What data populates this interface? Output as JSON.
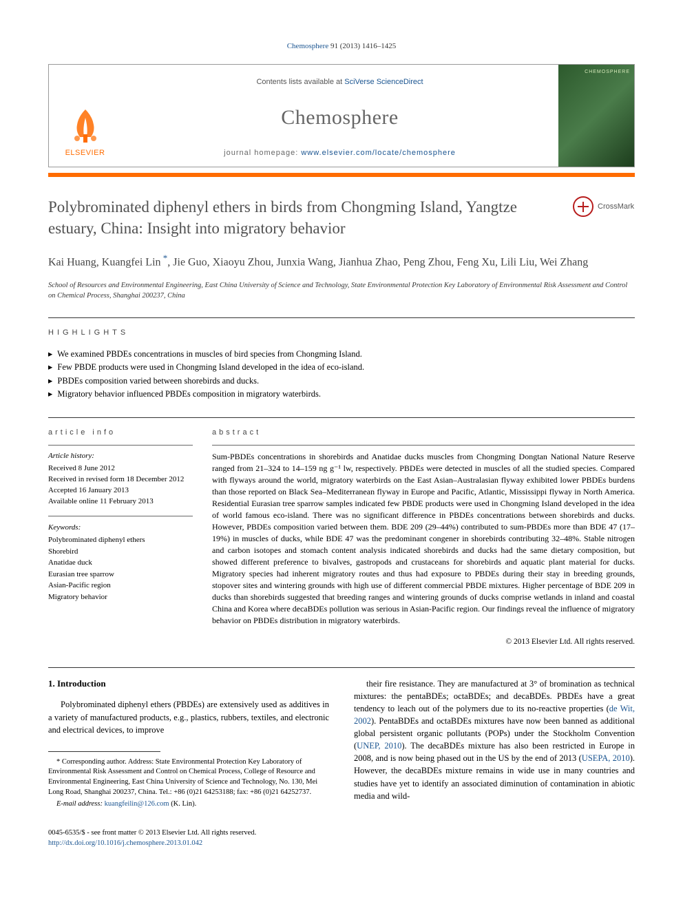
{
  "citation": {
    "journal_link": "Chemosphere",
    "ref": " 91 (2013) 1416–1425"
  },
  "header": {
    "contents_prefix": "Contents lists available at ",
    "contents_link": "SciVerse ScienceDirect",
    "journal_name": "Chemosphere",
    "homepage_prefix": "journal homepage: ",
    "homepage_link": "www.elsevier.com/locate/chemosphere",
    "publisher_text": "ELSEVIER",
    "cover_label": "CHEMOSPHERE"
  },
  "colors": {
    "accent_orange": "#ff6c00",
    "link_blue": "#1a5490",
    "title_gray": "#505050",
    "journal_gray": "#666666"
  },
  "crossmark": {
    "label": "CrossMark"
  },
  "title": "Polybrominated diphenyl ethers in birds from Chongming Island, Yangtze estuary, China: Insight into migratory behavior",
  "authors": [
    "Kai Huang",
    "Kuangfei Lin",
    "Jie Guo",
    "Xiaoyu Zhou",
    "Junxia Wang",
    "Jianhua Zhao",
    "Peng Zhou",
    "Feng Xu",
    "Lili Liu",
    "Wei Zhang"
  ],
  "corresponding_index": 1,
  "affiliation": "School of Resources and Environmental Engineering, East China University of Science and Technology, State Environmental Protection Key Laboratory of Environmental Risk Assessment and Control on Chemical Process, Shanghai 200237, China",
  "highlights_heading": "highlights",
  "highlights": [
    "We examined PBDEs concentrations in muscles of bird species from Chongming Island.",
    "Few PBDE products were used in Chongming Island developed in the idea of eco-island.",
    "PBDEs composition varied between shorebirds and ducks.",
    "Migratory behavior influenced PBDEs composition in migratory waterbirds."
  ],
  "article_info": {
    "heading": "article info",
    "history_label": "Article history:",
    "history": [
      "Received 8 June 2012",
      "Received in revised form 18 December 2012",
      "Accepted 16 January 2013",
      "Available online 11 February 2013"
    ],
    "keywords_label": "Keywords:",
    "keywords": [
      "Polybrominated diphenyl ethers",
      "Shorebird",
      "Anatidae duck",
      "Eurasian tree sparrow",
      "Asian-Pacific region",
      "Migratory behavior"
    ]
  },
  "abstract": {
    "heading": "abstract",
    "text": "Sum-PBDEs concentrations in shorebirds and Anatidae ducks muscles from Chongming Dongtan National Nature Reserve ranged from 21–324 to 14–159 ng g⁻¹ lw, respectively. PBDEs were detected in muscles of all the studied species. Compared with flyways around the world, migratory waterbirds on the East Asian–Australasian flyway exhibited lower PBDEs burdens than those reported on Black Sea–Mediterranean flyway in Europe and Pacific, Atlantic, Mississippi flyway in North America. Residential Eurasian tree sparrow samples indicated few PBDE products were used in Chongming Island developed in the idea of world famous eco-island. There was no significant difference in PBDEs concentrations between shorebirds and ducks. However, PBDEs composition varied between them. BDE 209 (29–44%) contributed to sum-PBDEs more than BDE 47 (17–19%) in muscles of ducks, while BDE 47 was the predominant congener in shorebirds contributing 32–48%. Stable nitrogen and carbon isotopes and stomach content analysis indicated shorebirds and ducks had the same dietary composition, but showed different preference to bivalves, gastropods and crustaceans for shorebirds and aquatic plant material for ducks. Migratory species had inherent migratory routes and thus had exposure to PBDEs during their stay in breeding grounds, stopover sites and wintering grounds with high use of different commercial PBDE mixtures. Higher percentage of BDE 209 in ducks than shorebirds suggested that breeding ranges and wintering grounds of ducks comprise wetlands in inland and coastal China and Korea where decaBDEs pollution was serious in Asian-Pacific region. Our findings reveal the influence of migratory behavior on PBDEs distribution in migratory waterbirds.",
    "copyright": "© 2013 Elsevier Ltd. All rights reserved."
  },
  "body": {
    "section_num": "1.",
    "section_title": "Introduction",
    "col1_p1": "Polybrominated diphenyl ethers (PBDEs) are extensively used as additives in a variety of manufactured products, e.g., plastics, rubbers, textiles, and electronic and electrical devices, to improve",
    "col2_pre": "their fire resistance. They are manufactured at 3° of bromination as technical mixtures: the pentaBDEs; octaBDEs; and decaBDEs. PBDEs have a great tendency to leach out of the polymers due to its no-reactive properties (",
    "col2_link1": "de Wit, 2002",
    "col2_mid1": "). PentaBDEs and octaBDEs mixtures have now been banned as additional global persistent organic pollutants (POPs) under the Stockholm Convention (",
    "col2_link2": "UNEP, 2010",
    "col2_mid2": "). The decaBDEs mixture has also been restricted in Europe in 2008, and is now being phased out in the US by the end of 2013 (",
    "col2_link3": "USEPA, 2010",
    "col2_post": "). However, the decaBDEs mixture remains in wide use in many countries and studies have yet to identify an associated diminution of contamination in abiotic media and wild-"
  },
  "footnote": {
    "corr_label": "* Corresponding author. Address: State Environmental Protection Key Laboratory of Environmental Risk Assessment and Control on Chemical Process, College of Resource and Environmental Engineering, East China University of Science and Technology, No. 130, Mei Long Road, Shanghai 200237, China. Tel.: +86 (0)21 64253188; fax: +86 (0)21 64252737.",
    "email_label": "E-mail address: ",
    "email": "kuangfeilin@126.com",
    "email_tail": " (K. Lin)."
  },
  "footer": {
    "line1": "0045-6535/$ - see front matter © 2013 Elsevier Ltd. All rights reserved.",
    "doi": "http://dx.doi.org/10.1016/j.chemosphere.2013.01.042"
  }
}
